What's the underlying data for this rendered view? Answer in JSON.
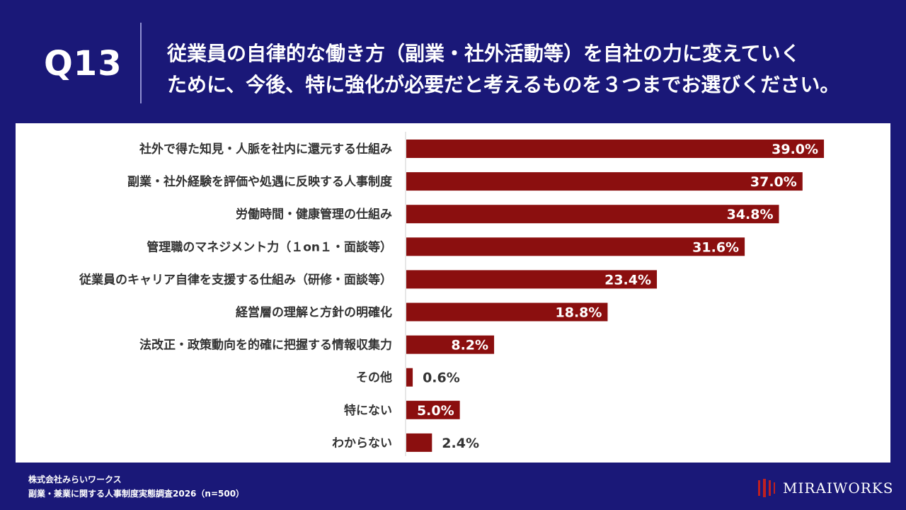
{
  "header": {
    "q_label": "Q13",
    "question_line1": "従業員の自律的な働き方（副業・社外活動等）を自社の力に変えていく",
    "question_line2": "ために、今後、特に強化が必要だと考えるものを３つまでお選びください。"
  },
  "chart_data": {
    "type": "bar",
    "orientation": "horizontal",
    "categories": [
      "社外で得た知見・人脈を社内に還元する仕組み",
      "副業・社外経験を評価や処遇に反映する人事制度",
      "労働時間・健康管理の仕組み",
      "管理職のマネジメント力（１on１・面談等）",
      "従業員のキャリア自律を支援する仕組み（研修・面談等）",
      "経営層の理解と方針の明確化",
      "法改正・政策動向を的確に把握する情報収集力",
      "その他",
      "特にない",
      "わからない"
    ],
    "values": [
      39.0,
      37.0,
      34.8,
      31.6,
      23.4,
      18.8,
      8.2,
      0.6,
      5.0,
      2.4
    ],
    "value_labels": [
      "39.0%",
      "37.0%",
      "34.8%",
      "31.6%",
      "23.4%",
      "18.8%",
      "8.2%",
      "0.6%",
      "5.0%",
      "2.4%"
    ],
    "xlim": [
      0,
      45
    ],
    "bar_color": "#8b0f0f",
    "grid": false
  },
  "footer": {
    "company": "株式会社みらいワークス",
    "survey": "副業・兼業に関する人事制度実態調査2026（n=500）"
  },
  "logo": {
    "text": "MIRAIWORKS",
    "color": "#c02020"
  },
  "colors": {
    "background": "#1a1878",
    "panel": "#ffffff",
    "bar": "#8b0f0f",
    "label_text": "#333333"
  }
}
